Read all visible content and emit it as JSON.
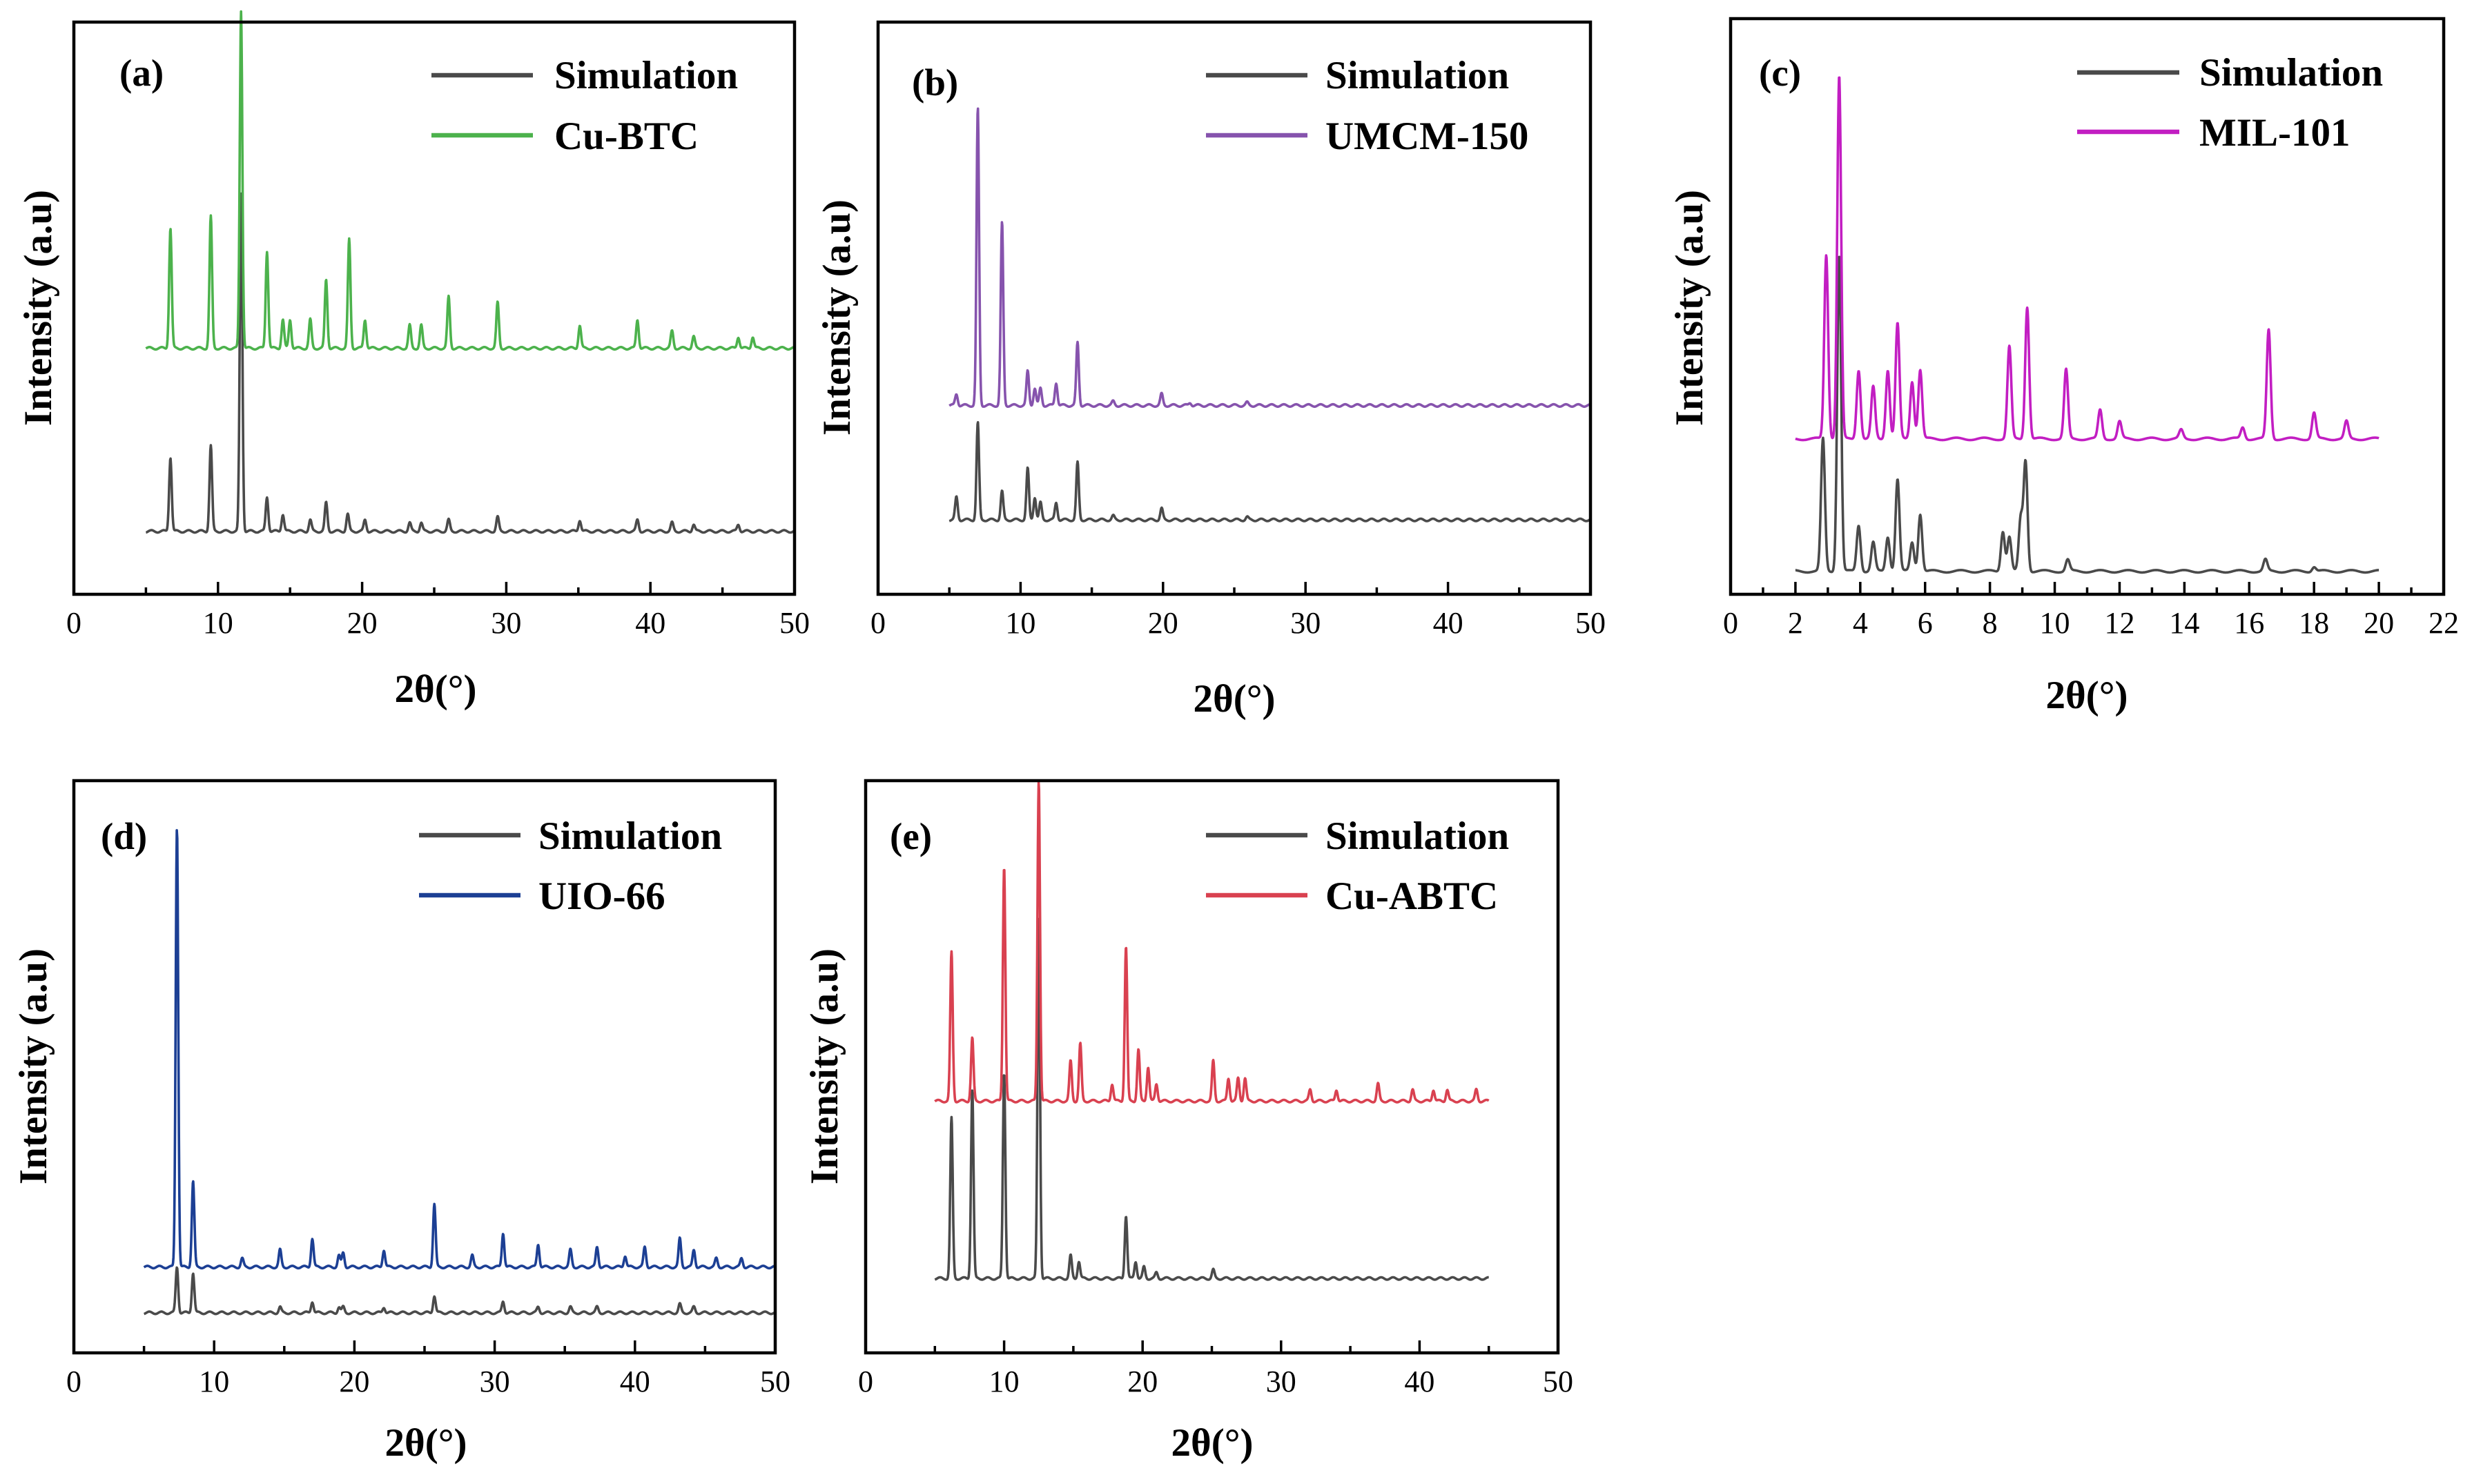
{
  "colors": {
    "simulation": "#4a4a4a"
  },
  "chart_data": [
    {
      "id": "a",
      "type": "line",
      "panel_label": "(a)",
      "xlabel": "2θ(°)",
      "ylabel": "Intensity (a.u)",
      "xlim": [
        0,
        50
      ],
      "ylim": [
        0,
        100
      ],
      "xticks": [
        0,
        10,
        20,
        30,
        40,
        50
      ],
      "xrange": [
        5,
        50
      ],
      "grid": false,
      "legend_location": "top-right",
      "series": [
        {
          "name": "Simulation",
          "color": "#4a4a4a",
          "baseline": 11,
          "peaks": [
            [
              6.7,
              13
            ],
            [
              9.5,
              15
            ],
            [
              11.6,
              59
            ],
            [
              13.4,
              6
            ],
            [
              14.5,
              3
            ],
            [
              16.4,
              2
            ],
            [
              17.5,
              5
            ],
            [
              19.0,
              3
            ],
            [
              20.2,
              2
            ],
            [
              23.3,
              1.5
            ],
            [
              24.1,
              1.5
            ],
            [
              26.0,
              2
            ],
            [
              29.4,
              2.5
            ],
            [
              35.1,
              2
            ],
            [
              39.1,
              2
            ],
            [
              41.5,
              1.5
            ],
            [
              43.0,
              1.2
            ],
            [
              46.1,
              1.2
            ]
          ]
        },
        {
          "name": "Cu-BTC",
          "color": "#4cb24c",
          "baseline": 43,
          "peaks": [
            [
              6.7,
              21
            ],
            [
              9.5,
              23
            ],
            [
              11.6,
              59
            ],
            [
              13.4,
              17
            ],
            [
              14.5,
              5
            ],
            [
              15.0,
              5
            ],
            [
              16.4,
              5
            ],
            [
              17.5,
              12
            ],
            [
              19.1,
              19
            ],
            [
              20.2,
              5
            ],
            [
              23.3,
              4
            ],
            [
              24.1,
              4
            ],
            [
              26.0,
              9
            ],
            [
              29.4,
              8
            ],
            [
              35.1,
              4
            ],
            [
              39.1,
              5
            ],
            [
              41.5,
              3
            ],
            [
              43.0,
              2
            ],
            [
              46.1,
              2
            ],
            [
              47.1,
              2
            ]
          ]
        }
      ]
    },
    {
      "id": "b",
      "type": "line",
      "panel_label": "(b)",
      "xlabel": "2θ(°)",
      "ylabel": "Intensity (a.u)",
      "xlim": [
        0,
        50
      ],
      "ylim": [
        0,
        100
      ],
      "xticks": [
        0,
        10,
        20,
        30,
        40,
        50
      ],
      "xrange": [
        5,
        50
      ],
      "grid": false,
      "legend_location": "top-right",
      "series": [
        {
          "name": "Simulation",
          "color": "#4a4a4a",
          "baseline": 13,
          "peaks": [
            [
              5.5,
              4
            ],
            [
              7.0,
              17
            ],
            [
              8.7,
              5
            ],
            [
              10.5,
              9
            ],
            [
              11.0,
              4
            ],
            [
              11.4,
              3
            ],
            [
              12.5,
              3
            ],
            [
              14.0,
              10
            ],
            [
              16.5,
              0.7
            ],
            [
              19.9,
              2
            ],
            [
              25.9,
              0.5
            ]
          ]
        },
        {
          "name": "UMCM-150",
          "color": "#8653ad",
          "baseline": 33,
          "peaks": [
            [
              5.5,
              2
            ],
            [
              7.0,
              52
            ],
            [
              8.7,
              32
            ],
            [
              10.5,
              6
            ],
            [
              11.0,
              3
            ],
            [
              11.4,
              3
            ],
            [
              12.5,
              4
            ],
            [
              14.0,
              11
            ],
            [
              16.5,
              0.7
            ],
            [
              19.9,
              2
            ],
            [
              21.9,
              0.5
            ],
            [
              25.9,
              0.5
            ]
          ]
        }
      ]
    },
    {
      "id": "c",
      "type": "line",
      "panel_label": "(c)",
      "xlabel": "2θ(°)",
      "ylabel": "Intensity (a.u)",
      "xlim": [
        0,
        22
      ],
      "ylim": [
        0,
        100
      ],
      "xticks": [
        0,
        2,
        4,
        6,
        8,
        10,
        12,
        14,
        16,
        18,
        20,
        22
      ],
      "xrange": [
        2,
        20
      ],
      "grid": false,
      "legend_location": "top-right",
      "series": [
        {
          "name": "Simulation",
          "color": "#4a4a4a",
          "baseline": 4,
          "peaks": [
            [
              2.85,
              23
            ],
            [
              3.35,
              55
            ],
            [
              3.95,
              8
            ],
            [
              4.4,
              5
            ],
            [
              4.85,
              6
            ],
            [
              5.15,
              16
            ],
            [
              5.6,
              5
            ],
            [
              5.85,
              10
            ],
            [
              8.4,
              7
            ],
            [
              8.6,
              6
            ],
            [
              8.95,
              9
            ],
            [
              9.1,
              19
            ],
            [
              10.4,
              2
            ],
            [
              16.5,
              2
            ],
            [
              18.0,
              0.8
            ]
          ]
        },
        {
          "name": "MIL-101",
          "color": "#c21ec2",
          "baseline": 27,
          "peaks": [
            [
              2.95,
              32
            ],
            [
              3.35,
              63
            ],
            [
              3.95,
              12
            ],
            [
              4.4,
              9
            ],
            [
              4.85,
              12
            ],
            [
              5.15,
              20
            ],
            [
              5.6,
              10
            ],
            [
              5.85,
              12
            ],
            [
              8.6,
              16
            ],
            [
              9.15,
              23
            ],
            [
              10.35,
              12
            ],
            [
              11.4,
              5
            ],
            [
              12.0,
              3
            ],
            [
              13.9,
              1.5
            ],
            [
              15.8,
              2
            ],
            [
              16.6,
              19
            ],
            [
              18.0,
              4.5
            ],
            [
              19.0,
              3
            ]
          ]
        }
      ]
    },
    {
      "id": "d",
      "type": "line",
      "panel_label": "(d)",
      "xlabel": "2θ(°)",
      "ylabel": "Intensity (a.u)",
      "xlim": [
        0,
        50
      ],
      "ylim": [
        0,
        100
      ],
      "xticks": [
        0,
        10,
        20,
        30,
        40,
        50
      ],
      "xrange": [
        5,
        50
      ],
      "grid": false,
      "legend_location": "top-right",
      "series": [
        {
          "name": "Simulation",
          "color": "#4a4a4a",
          "baseline": 7,
          "peaks": [
            [
              7.35,
              8
            ],
            [
              8.5,
              7
            ],
            [
              14.7,
              1
            ],
            [
              17.0,
              2
            ],
            [
              18.9,
              1
            ],
            [
              19.2,
              1
            ],
            [
              22.1,
              1
            ],
            [
              25.7,
              3
            ],
            [
              30.6,
              2
            ],
            [
              33.1,
              1
            ],
            [
              35.4,
              1
            ],
            [
              37.3,
              1
            ],
            [
              43.2,
              1.5
            ],
            [
              44.2,
              1
            ]
          ]
        },
        {
          "name": "UIO-66",
          "color": "#1c3f94",
          "baseline": 15,
          "peaks": [
            [
              7.35,
              77
            ],
            [
              8.5,
              15
            ],
            [
              12.0,
              1.5
            ],
            [
              14.7,
              3
            ],
            [
              17.0,
              5
            ],
            [
              18.9,
              2
            ],
            [
              19.2,
              2.5
            ],
            [
              22.1,
              3
            ],
            [
              25.7,
              11
            ],
            [
              28.4,
              2
            ],
            [
              30.6,
              6
            ],
            [
              33.1,
              4
            ],
            [
              35.4,
              3
            ],
            [
              37.3,
              3.5
            ],
            [
              39.3,
              2
            ],
            [
              40.7,
              3.5
            ],
            [
              43.2,
              5
            ],
            [
              44.2,
              3
            ],
            [
              45.8,
              1.5
            ],
            [
              47.6,
              1.5
            ]
          ]
        }
      ]
    },
    {
      "id": "e",
      "type": "line",
      "panel_label": "(e)",
      "xlabel": "2θ(°)",
      "ylabel": "Intensity (a.u)",
      "xlim": [
        0,
        50
      ],
      "ylim": [
        0,
        100
      ],
      "xticks": [
        0,
        10,
        20,
        30,
        40,
        50
      ],
      "xrange": [
        5,
        45
      ],
      "grid": false,
      "legend_location": "top-right",
      "series": [
        {
          "name": "Simulation",
          "color": "#4a4a4a",
          "baseline": 13,
          "peaks": [
            [
              6.2,
              28
            ],
            [
              7.7,
              33
            ],
            [
              10.0,
              36
            ],
            [
              12.5,
              63
            ],
            [
              14.8,
              4
            ],
            [
              15.4,
              3
            ],
            [
              18.8,
              11
            ],
            [
              19.5,
              3
            ],
            [
              20.1,
              2
            ],
            [
              21.0,
              1
            ],
            [
              25.1,
              1.5
            ]
          ]
        },
        {
          "name": "Cu-ABTC",
          "color": "#d94150",
          "baseline": 44,
          "peaks": [
            [
              6.2,
              26
            ],
            [
              7.7,
              11
            ],
            [
              10.0,
              41
            ],
            [
              12.5,
              56
            ],
            [
              14.8,
              7
            ],
            [
              15.5,
              10
            ],
            [
              17.8,
              3
            ],
            [
              18.8,
              27
            ],
            [
              19.7,
              9
            ],
            [
              20.4,
              6
            ],
            [
              21.0,
              3
            ],
            [
              25.1,
              7
            ],
            [
              26.2,
              4
            ],
            [
              26.9,
              4
            ],
            [
              27.4,
              4
            ],
            [
              32.1,
              2
            ],
            [
              34.0,
              2
            ],
            [
              37.0,
              3
            ],
            [
              39.5,
              2
            ],
            [
              41.0,
              2
            ],
            [
              42.0,
              2
            ],
            [
              44.1,
              2
            ]
          ]
        }
      ]
    }
  ]
}
